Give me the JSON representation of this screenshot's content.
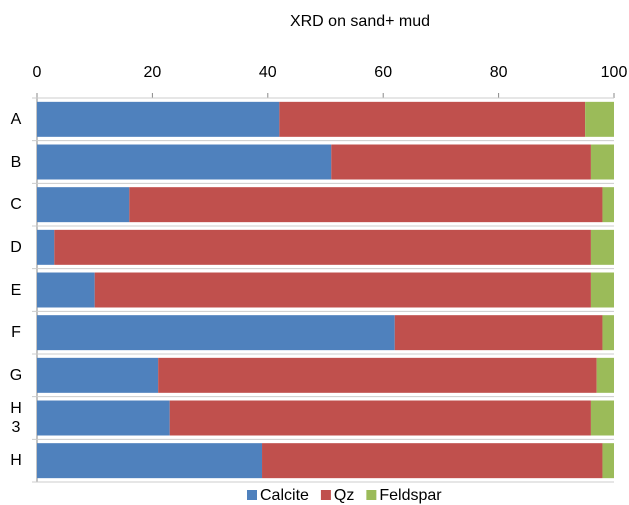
{
  "chart_data": {
    "type": "stacked-barh",
    "title": "XRD on sand+ mud",
    "categories": [
      "A",
      "B",
      "C",
      "D",
      "E",
      "F",
      "G",
      "H 3",
      "H"
    ],
    "series": [
      {
        "name": "Calcite",
        "color": "#4f81bd",
        "values": [
          42,
          51,
          16,
          3,
          10,
          62,
          21,
          23,
          39
        ]
      },
      {
        "name": "Qz",
        "color": "#c0504d",
        "values": [
          53,
          45,
          82,
          93,
          86,
          36,
          76,
          73,
          59
        ]
      },
      {
        "name": "Feldspar",
        "color": "#9bbb59",
        "values": [
          5,
          4,
          2,
          4,
          4,
          2,
          3,
          4,
          2
        ]
      }
    ],
    "xlim": [
      0,
      100
    ],
    "xticks": [
      0,
      20,
      40,
      60,
      80,
      100
    ],
    "legend": "bottom"
  }
}
